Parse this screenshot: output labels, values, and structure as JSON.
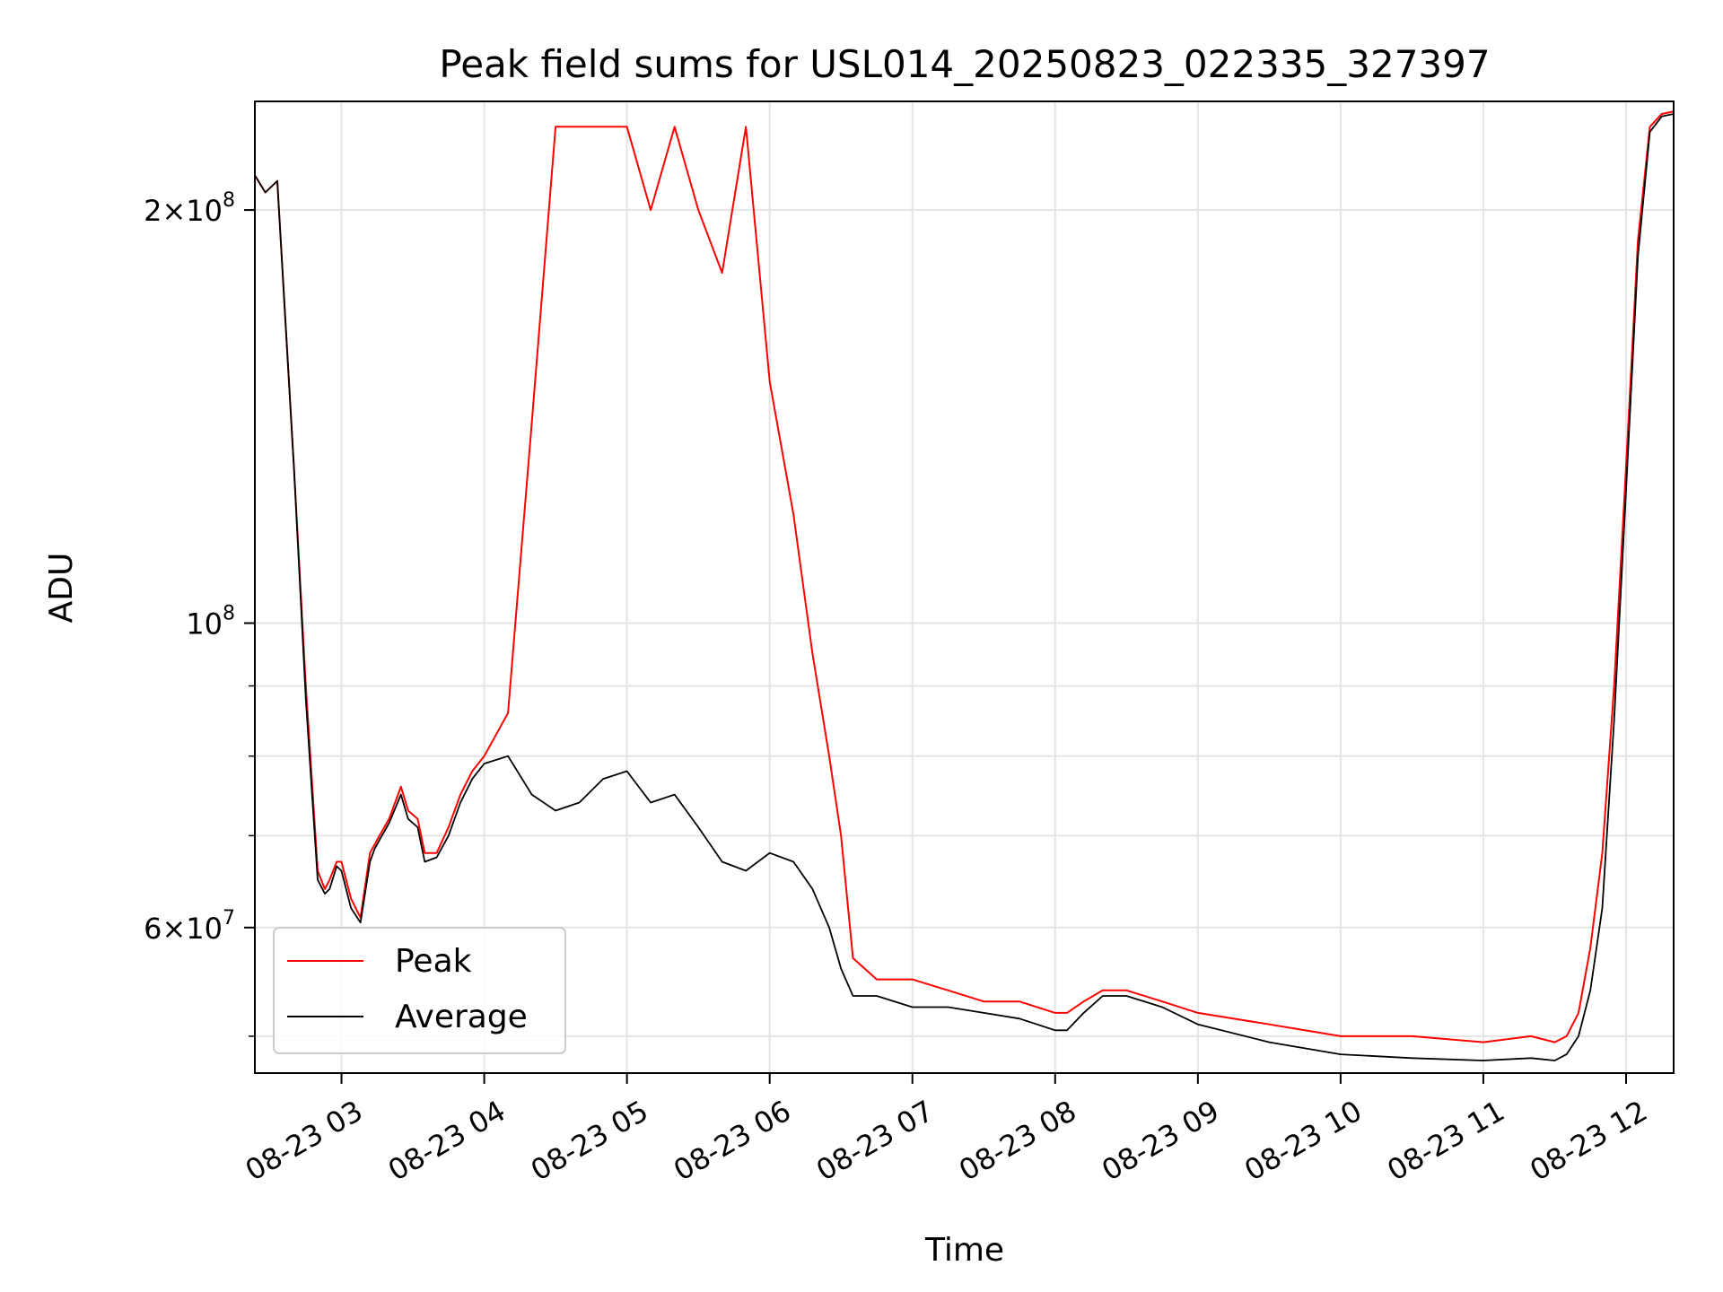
{
  "chart_data": {
    "type": "line",
    "title": "Peak field sums for USL014_20250823_022335_327397",
    "xlabel": "Time",
    "ylabel": "ADU",
    "y_scale": "log",
    "ylim": [
      47000000,
      240000000
    ],
    "xlim": [
      "2025-08-23T02:23:35",
      "2025-08-23T12:20:00"
    ],
    "x_ticks": [
      {
        "t": "2025-08-23T03:00:00",
        "label": "08-23 03"
      },
      {
        "t": "2025-08-23T04:00:00",
        "label": "08-23 04"
      },
      {
        "t": "2025-08-23T05:00:00",
        "label": "08-23 05"
      },
      {
        "t": "2025-08-23T06:00:00",
        "label": "08-23 06"
      },
      {
        "t": "2025-08-23T07:00:00",
        "label": "08-23 07"
      },
      {
        "t": "2025-08-23T08:00:00",
        "label": "08-23 08"
      },
      {
        "t": "2025-08-23T09:00:00",
        "label": "08-23 09"
      },
      {
        "t": "2025-08-23T10:00:00",
        "label": "08-23 10"
      },
      {
        "t": "2025-08-23T11:00:00",
        "label": "08-23 11"
      },
      {
        "t": "2025-08-23T12:00:00",
        "label": "08-23 12"
      }
    ],
    "y_ticks_major": [
      {
        "v": 60000000,
        "base": "6",
        "exp": "7"
      },
      {
        "v": 100000000,
        "base": "",
        "exp": "8"
      },
      {
        "v": 200000000,
        "base": "2",
        "exp": "8"
      }
    ],
    "y_ticks_minor": [
      50000000,
      70000000,
      80000000,
      90000000,
      300000000
    ],
    "grid": true,
    "legend": {
      "position": "lower-left"
    },
    "series": [
      {
        "name": "Peak",
        "color": "#ff0000",
        "x": [
          "2025-08-23T02:23:35",
          "2025-08-23T02:28:00",
          "2025-08-23T02:33:00",
          "2025-08-23T02:40:00",
          "2025-08-23T02:45:00",
          "2025-08-23T02:50:00",
          "2025-08-23T02:53:00",
          "2025-08-23T02:55:00",
          "2025-08-23T02:58:00",
          "2025-08-23T03:00:00",
          "2025-08-23T03:04:00",
          "2025-08-23T03:08:00",
          "2025-08-23T03:12:00",
          "2025-08-23T03:14:00",
          "2025-08-23T03:16:00",
          "2025-08-23T03:20:00",
          "2025-08-23T03:25:00",
          "2025-08-23T03:28:00",
          "2025-08-23T03:32:00",
          "2025-08-23T03:35:00",
          "2025-08-23T03:40:00",
          "2025-08-23T03:45:00",
          "2025-08-23T03:50:00",
          "2025-08-23T03:55:00",
          "2025-08-23T04:00:00",
          "2025-08-23T04:10:00",
          "2025-08-23T04:20:00",
          "2025-08-23T04:30:00",
          "2025-08-23T04:40:00",
          "2025-08-23T04:50:00",
          "2025-08-23T05:00:00",
          "2025-08-23T05:10:00",
          "2025-08-23T05:20:00",
          "2025-08-23T05:30:00",
          "2025-08-23T05:40:00",
          "2025-08-23T05:50:00",
          "2025-08-23T06:00:00",
          "2025-08-23T06:10:00",
          "2025-08-23T06:18:00",
          "2025-08-23T06:25:00",
          "2025-08-23T06:30:00",
          "2025-08-23T06:35:00",
          "2025-08-23T06:45:00",
          "2025-08-23T07:00:00",
          "2025-08-23T07:15:00",
          "2025-08-23T07:30:00",
          "2025-08-23T07:45:00",
          "2025-08-23T08:00:00",
          "2025-08-23T08:05:00",
          "2025-08-23T08:12:00",
          "2025-08-23T08:20:00",
          "2025-08-23T08:30:00",
          "2025-08-23T08:45:00",
          "2025-08-23T09:00:00",
          "2025-08-23T09:30:00",
          "2025-08-23T10:00:00",
          "2025-08-23T10:30:00",
          "2025-08-23T11:00:00",
          "2025-08-23T11:20:00",
          "2025-08-23T11:30:00",
          "2025-08-23T11:35:00",
          "2025-08-23T11:40:00",
          "2025-08-23T11:45:00",
          "2025-08-23T11:50:00",
          "2025-08-23T11:55:00",
          "2025-08-23T12:00:00",
          "2025-08-23T12:05:00",
          "2025-08-23T12:10:00",
          "2025-08-23T12:15:00",
          "2025-08-23T12:20:00"
        ],
        "y": [
          212000000,
          206000000,
          210000000,
          130000000,
          90000000,
          66000000,
          64000000,
          65000000,
          67000000,
          67000000,
          63000000,
          61000000,
          68000000,
          69000000,
          70000000,
          72000000,
          76000000,
          73000000,
          72000000,
          68000000,
          68000000,
          71000000,
          75000000,
          78000000,
          80000000,
          86000000,
          140000000,
          230000000,
          230000000,
          230000000,
          230000000,
          200000000,
          230000000,
          200000000,
          180000000,
          230000000,
          150000000,
          120000000,
          95000000,
          80000000,
          70000000,
          57000000,
          55000000,
          55000000,
          54000000,
          53000000,
          53000000,
          52000000,
          52000000,
          53000000,
          54000000,
          54000000,
          53000000,
          52000000,
          51000000,
          50000000,
          50000000,
          49500000,
          50000000,
          49500000,
          50000000,
          52000000,
          58000000,
          68000000,
          90000000,
          130000000,
          190000000,
          230000000,
          235000000,
          236000000
        ]
      },
      {
        "name": "Average",
        "color": "#000000",
        "x": [
          "2025-08-23T02:23:35",
          "2025-08-23T02:28:00",
          "2025-08-23T02:33:00",
          "2025-08-23T02:40:00",
          "2025-08-23T02:45:00",
          "2025-08-23T02:50:00",
          "2025-08-23T02:53:00",
          "2025-08-23T02:55:00",
          "2025-08-23T02:58:00",
          "2025-08-23T03:00:00",
          "2025-08-23T03:04:00",
          "2025-08-23T03:08:00",
          "2025-08-23T03:12:00",
          "2025-08-23T03:14:00",
          "2025-08-23T03:16:00",
          "2025-08-23T03:20:00",
          "2025-08-23T03:25:00",
          "2025-08-23T03:28:00",
          "2025-08-23T03:32:00",
          "2025-08-23T03:35:00",
          "2025-08-23T03:40:00",
          "2025-08-23T03:45:00",
          "2025-08-23T03:50:00",
          "2025-08-23T03:55:00",
          "2025-08-23T04:00:00",
          "2025-08-23T04:10:00",
          "2025-08-23T04:20:00",
          "2025-08-23T04:30:00",
          "2025-08-23T04:40:00",
          "2025-08-23T04:50:00",
          "2025-08-23T05:00:00",
          "2025-08-23T05:10:00",
          "2025-08-23T05:20:00",
          "2025-08-23T05:30:00",
          "2025-08-23T05:40:00",
          "2025-08-23T05:50:00",
          "2025-08-23T06:00:00",
          "2025-08-23T06:10:00",
          "2025-08-23T06:18:00",
          "2025-08-23T06:25:00",
          "2025-08-23T06:30:00",
          "2025-08-23T06:35:00",
          "2025-08-23T06:45:00",
          "2025-08-23T07:00:00",
          "2025-08-23T07:15:00",
          "2025-08-23T07:30:00",
          "2025-08-23T07:45:00",
          "2025-08-23T08:00:00",
          "2025-08-23T08:05:00",
          "2025-08-23T08:12:00",
          "2025-08-23T08:20:00",
          "2025-08-23T08:30:00",
          "2025-08-23T08:45:00",
          "2025-08-23T09:00:00",
          "2025-08-23T09:30:00",
          "2025-08-23T10:00:00",
          "2025-08-23T10:30:00",
          "2025-08-23T11:00:00",
          "2025-08-23T11:20:00",
          "2025-08-23T11:30:00",
          "2025-08-23T11:35:00",
          "2025-08-23T11:40:00",
          "2025-08-23T11:45:00",
          "2025-08-23T11:50:00",
          "2025-08-23T11:55:00",
          "2025-08-23T12:00:00",
          "2025-08-23T12:05:00",
          "2025-08-23T12:10:00",
          "2025-08-23T12:15:00",
          "2025-08-23T12:20:00"
        ],
        "y": [
          212000000,
          206000000,
          210000000,
          130000000,
          88000000,
          65000000,
          63500000,
          64000000,
          66500000,
          66000000,
          62000000,
          60500000,
          67000000,
          68500000,
          69500000,
          71500000,
          75000000,
          72000000,
          71000000,
          67000000,
          67500000,
          70000000,
          74000000,
          77000000,
          79000000,
          80000000,
          75000000,
          73000000,
          74000000,
          77000000,
          78000000,
          74000000,
          75000000,
          71000000,
          67000000,
          66000000,
          68000000,
          67000000,
          64000000,
          60000000,
          56000000,
          53500000,
          53500000,
          52500000,
          52500000,
          52000000,
          51500000,
          50500000,
          50500000,
          52000000,
          53500000,
          53500000,
          52500000,
          51000000,
          49500000,
          48500000,
          48200000,
          48000000,
          48200000,
          48000000,
          48500000,
          50000000,
          54000000,
          62000000,
          85000000,
          125000000,
          185000000,
          228000000,
          234000000,
          235000000
        ]
      }
    ]
  }
}
